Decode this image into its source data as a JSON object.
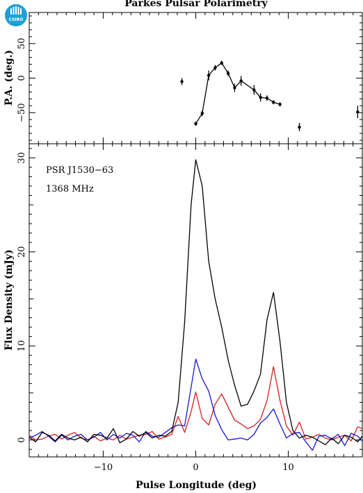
{
  "title": "Parkes Pulsar Polarimetry",
  "logo": {
    "text": "CSIRO",
    "color": "#1e9fd6",
    "icon": "csiro-logo-icon"
  },
  "chart_data": [
    {
      "type": "scatter",
      "panel": "top",
      "ylabel": "P.A. (deg.)",
      "xlim": [
        -18,
        18
      ],
      "ylim": [
        -95,
        95
      ],
      "xticks": [
        -10,
        0,
        10
      ],
      "yticks": [
        -50,
        0,
        50
      ],
      "ytick_labels": [
        "−50",
        "0",
        "50"
      ],
      "series": [
        {
          "color": "#000000",
          "points": [
            {
              "x": -1.5,
              "y": -5,
              "err": 5
            },
            {
              "x": 0.0,
              "y": -66,
              "err": 3
            },
            {
              "x": 0.7,
              "y": -51,
              "err": 4
            },
            {
              "x": 1.4,
              "y": 4,
              "err": 7
            },
            {
              "x": 2.1,
              "y": 15,
              "err": 4
            },
            {
              "x": 2.8,
              "y": 22,
              "err": 3
            },
            {
              "x": 3.5,
              "y": 7,
              "err": 4
            },
            {
              "x": 4.2,
              "y": -14,
              "err": 6
            },
            {
              "x": 4.9,
              "y": -4,
              "err": 7
            },
            {
              "x": 6.3,
              "y": -17,
              "err": 7
            },
            {
              "x": 7.0,
              "y": -28,
              "err": 6
            },
            {
              "x": 7.7,
              "y": -29,
              "err": 4
            },
            {
              "x": 8.4,
              "y": -35,
              "err": 3
            },
            {
              "x": 9.1,
              "y": -38,
              "err": 3
            },
            {
              "x": 11.2,
              "y": -71,
              "err": 6
            },
            {
              "x": 17.5,
              "y": -49,
              "err": 9
            }
          ],
          "connected_range": [
            1,
            13
          ]
        }
      ]
    },
    {
      "type": "line",
      "panel": "bottom",
      "xlabel": "Pulse Longitude (deg)",
      "ylabel": "Flux Density (mJy)",
      "xlim": [
        -18,
        18
      ],
      "ylim": [
        -1.8,
        31.5
      ],
      "xticks": [
        -10,
        0,
        10
      ],
      "xtick_labels": [
        "−10",
        "0",
        "10"
      ],
      "yticks": [
        0,
        10,
        20,
        30
      ],
      "annotations": [
        "PSR J1530−63",
        "1368 MHz"
      ],
      "x": [
        -18.0,
        -17.3,
        -16.6,
        -15.9,
        -15.2,
        -14.5,
        -13.8,
        -13.1,
        -12.4,
        -11.7,
        -11.0,
        -10.3,
        -9.6,
        -8.9,
        -8.2,
        -7.5,
        -6.8,
        -6.1,
        -5.4,
        -4.7,
        -4.0,
        -3.3,
        -2.6,
        -1.9,
        -1.2,
        -0.5,
        0.0,
        0.7,
        1.4,
        2.1,
        2.8,
        3.5,
        4.2,
        4.9,
        5.6,
        6.3,
        7.0,
        7.7,
        8.4,
        9.1,
        9.8,
        10.5,
        11.2,
        11.9,
        12.6,
        13.3,
        14.0,
        14.7,
        15.4,
        16.1,
        16.8,
        17.5,
        18.0
      ],
      "series": [
        {
          "color": "#000000",
          "values": [
            0.3,
            -0.2,
            0.8,
            0.5,
            -0.1,
            0.6,
            0.2,
            0.0,
            0.3,
            -0.2,
            0.6,
            0.5,
            0.2,
            1.2,
            -0.3,
            0.1,
            0.9,
            0.4,
            0.8,
            0.2,
            0.5,
            0.4,
            0.9,
            4.0,
            12.5,
            25.0,
            29.8,
            27.0,
            19.0,
            15.0,
            12.0,
            8.5,
            5.8,
            3.6,
            3.8,
            5.2,
            7.0,
            12.8,
            15.7,
            10.5,
            4.0,
            1.0,
            0.2,
            0.5,
            0.3,
            -0.1,
            -0.5,
            0.2,
            -0.4,
            0.5,
            0.3,
            -0.2,
            0.4
          ]
        },
        {
          "color": "#d81e1e",
          "values": [
            0.5,
            0.0,
            0.1,
            0.4,
            0.6,
            0.1,
            0.5,
            0.8,
            0.2,
            0.0,
            0.4,
            -0.1,
            0.2,
            0.0,
            0.5,
            0.1,
            0.3,
            0.5,
            0.6,
            0.9,
            0.1,
            0.3,
            0.6,
            2.5,
            0.8,
            3.0,
            5.1,
            2.3,
            1.6,
            3.8,
            4.9,
            3.5,
            2.1,
            1.7,
            1.2,
            1.5,
            2.2,
            4.2,
            7.8,
            4.2,
            1.5,
            0.5,
            1.9,
            0.1,
            0.3,
            0.6,
            0.2,
            0.0,
            0.3,
            0.5,
            -0.1,
            1.4,
            1.2
          ]
        },
        {
          "color": "#1414d6",
          "values": [
            0.2,
            0.5,
            0.9,
            0.4,
            -0.2,
            0.5,
            0.0,
            0.4,
            0.6,
            0.0,
            0.3,
            0.8,
            0.0,
            0.6,
            0.2,
            0.7,
            0.5,
            -0.2,
            0.9,
            0.4,
            0.3,
            0.8,
            1.3,
            1.6,
            1.5,
            5.6,
            8.6,
            6.5,
            5.2,
            2.6,
            1.1,
            0.0,
            0.1,
            0.2,
            0.0,
            0.6,
            1.8,
            2.4,
            3.3,
            1.7,
            0.2,
            0.7,
            0.8,
            -0.2,
            -1.1,
            0.4,
            0.5,
            0.1,
            0.6,
            -0.6,
            0.7,
            0.4,
            -0.1
          ]
        }
      ]
    }
  ]
}
